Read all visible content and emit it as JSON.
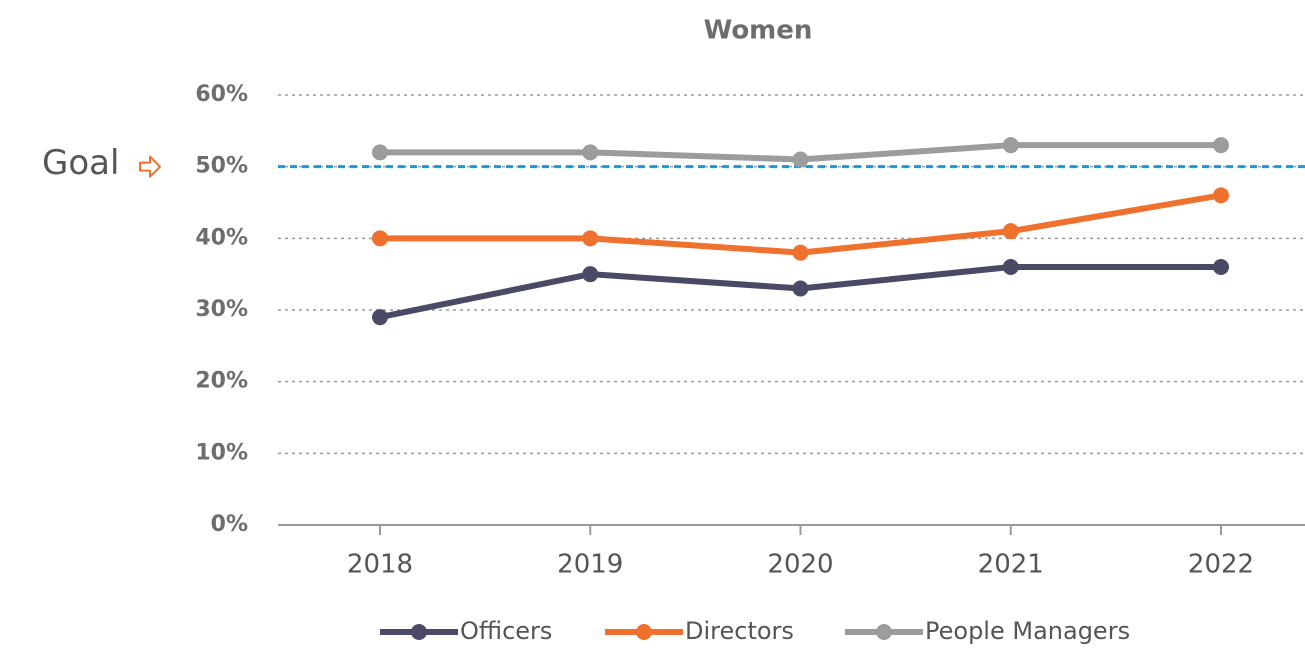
{
  "chart_data": {
    "type": "line",
    "title": "Women",
    "categories": [
      "2018",
      "2019",
      "2020",
      "2021",
      "2022"
    ],
    "series": [
      {
        "name": "Officers",
        "color": "#4a4966",
        "values": [
          29,
          35,
          33,
          36,
          36
        ]
      },
      {
        "name": "Directors",
        "color": "#f0702e",
        "values": [
          40,
          40,
          38,
          41,
          46
        ]
      },
      {
        "name": "People Managers",
        "color": "#9c9c9c",
        "values": [
          52,
          52,
          51,
          53,
          53
        ]
      }
    ],
    "ylim": [
      0,
      60
    ],
    "yticks": [
      {
        "value": 0,
        "label": "0%"
      },
      {
        "value": 10,
        "label": "10%"
      },
      {
        "value": 20,
        "label": "20%"
      },
      {
        "value": 30,
        "label": "30%"
      },
      {
        "value": 40,
        "label": "40%"
      },
      {
        "value": 50,
        "label": "50%"
      },
      {
        "value": 60,
        "label": "60%"
      }
    ],
    "grid": true,
    "goal": {
      "label": "Goal",
      "value": 50,
      "color": "#1b9ad6"
    },
    "legend": "bottom"
  }
}
